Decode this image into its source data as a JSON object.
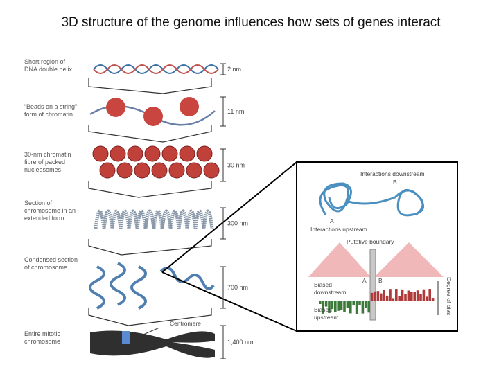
{
  "title": "3D structure of the genome influences how sets of genes interact",
  "levels": [
    {
      "label": [
        "Short region of",
        "DNA double helix"
      ],
      "scale": "2 nm"
    },
    {
      "label": [
        "“Beads on a string”",
        "form of chromatin"
      ],
      "scale": "11 nm"
    },
    {
      "label": [
        "30-nm chromatin",
        "fibre of packed",
        "nucleosomes"
      ],
      "scale": "30 nm"
    },
    {
      "label": [
        "Section of",
        "chromosome in an",
        "extended form"
      ],
      "scale": "300 nm"
    },
    {
      "label": [
        "Condensed section",
        "of chromosome"
      ],
      "scale": "700 nm"
    },
    {
      "label": [
        "Entire mitotic",
        "chromosome"
      ],
      "scale": "1,400 nm"
    }
  ],
  "centromere": "Centromere",
  "inset": {
    "top_label": "Interactions downstream",
    "point_b": "B",
    "point_a": "A",
    "bottom_label": "Interactions upstream",
    "boundary": "Putative boundary",
    "biased_downstream": [
      "Biased",
      "downstream"
    ],
    "biased_upstream": [
      "Biased",
      "upstream"
    ],
    "marker_a": "A",
    "marker_b": "B",
    "axis_label": "Degree of bias"
  }
}
